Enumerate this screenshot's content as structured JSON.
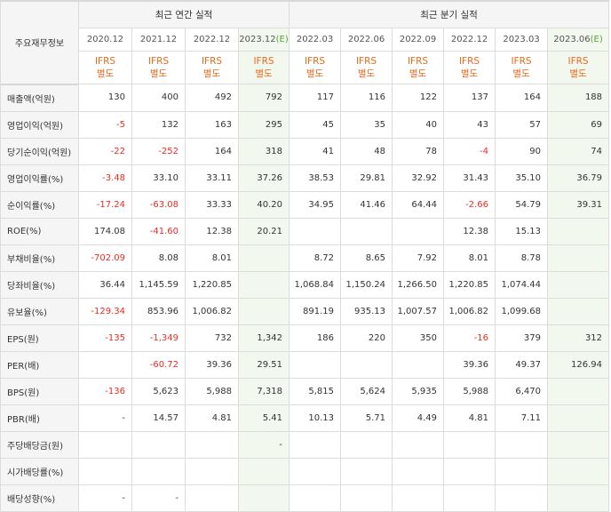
{
  "header": {
    "corner_label": "주요재무정보",
    "annual_group": "최근 연간 실적",
    "quarter_group": "최근 분기 실적",
    "periods": [
      {
        "label": "2020.12",
        "est": false
      },
      {
        "label": "2021.12",
        "est": false
      },
      {
        "label": "2022.12",
        "est": false
      },
      {
        "label": "2023.12",
        "est": true,
        "est_mark": "(E)"
      },
      {
        "label": "2022.03",
        "est": false
      },
      {
        "label": "2022.06",
        "est": false
      },
      {
        "label": "2022.09",
        "est": false
      },
      {
        "label": "2022.12",
        "est": false
      },
      {
        "label": "2023.03",
        "est": false
      },
      {
        "label": "2023.06",
        "est": true,
        "est_mark": "(E)"
      }
    ],
    "ifrs_line1": "IFRS",
    "ifrs_line2": "별도"
  },
  "rows": [
    {
      "label": "매출액(억원)",
      "values": [
        "130",
        "400",
        "492",
        "792",
        "117",
        "116",
        "122",
        "137",
        "164",
        "188"
      ]
    },
    {
      "label": "영업이익(억원)",
      "values": [
        "-5",
        "132",
        "163",
        "295",
        "45",
        "35",
        "40",
        "43",
        "57",
        "69"
      ]
    },
    {
      "label": "당기순이익(억원)",
      "values": [
        "-22",
        "-252",
        "164",
        "318",
        "41",
        "48",
        "78",
        "-4",
        "90",
        "74"
      ]
    },
    {
      "label": "영업이익률(%)",
      "values": [
        "-3.48",
        "33.10",
        "33.11",
        "37.26",
        "38.53",
        "29.81",
        "32.92",
        "31.43",
        "35.10",
        "36.79"
      ]
    },
    {
      "label": "순이익률(%)",
      "values": [
        "-17.24",
        "-63.08",
        "33.33",
        "40.20",
        "34.95",
        "41.46",
        "64.44",
        "-2.66",
        "54.79",
        "39.31"
      ]
    },
    {
      "label": "ROE(%)",
      "values": [
        "174.08",
        "-41.60",
        "12.38",
        "20.21",
        "",
        "",
        "",
        "12.38",
        "15.13",
        ""
      ]
    },
    {
      "label": "부채비율(%)",
      "values": [
        "-702.09",
        "8.08",
        "8.01",
        "",
        "8.72",
        "8.65",
        "7.92",
        "8.01",
        "8.78",
        ""
      ]
    },
    {
      "label": "당좌비율(%)",
      "values": [
        "36.44",
        "1,145.59",
        "1,220.85",
        "",
        "1,068.84",
        "1,150.24",
        "1,266.50",
        "1,220.85",
        "1,074.44",
        ""
      ]
    },
    {
      "label": "유보율(%)",
      "values": [
        "-129.34",
        "853.96",
        "1,006.82",
        "",
        "891.19",
        "935.13",
        "1,007.57",
        "1,006.82",
        "1,099.68",
        ""
      ]
    },
    {
      "label": "EPS(원)",
      "values": [
        "-135",
        "-1,349",
        "732",
        "1,342",
        "186",
        "220",
        "350",
        "-16",
        "379",
        "312"
      ]
    },
    {
      "label": "PER(배)",
      "values": [
        "",
        "-60.72",
        "39.36",
        "29.51",
        "",
        "",
        "",
        "39.36",
        "49.37",
        "126.94"
      ]
    },
    {
      "label": "BPS(원)",
      "values": [
        "-136",
        "5,623",
        "5,988",
        "7,318",
        "5,815",
        "5,624",
        "5,935",
        "5,988",
        "6,470",
        ""
      ]
    },
    {
      "label": "PBR(배)",
      "values": [
        "-",
        "14.57",
        "4.81",
        "5.41",
        "10.13",
        "5.71",
        "4.49",
        "4.81",
        "7.11",
        ""
      ]
    },
    {
      "label": "주당배당금(원)",
      "values": [
        "",
        "",
        "",
        "-",
        "",
        "",
        "",
        "",
        "",
        ""
      ]
    },
    {
      "label": "시가배당률(%)",
      "values": [
        "",
        "",
        "",
        "",
        "",
        "",
        "",
        "",
        "",
        ""
      ]
    },
    {
      "label": "배당성향(%)",
      "values": [
        "-",
        "-",
        "",
        "",
        "",
        "",
        "",
        "",
        "",
        ""
      ]
    }
  ]
}
